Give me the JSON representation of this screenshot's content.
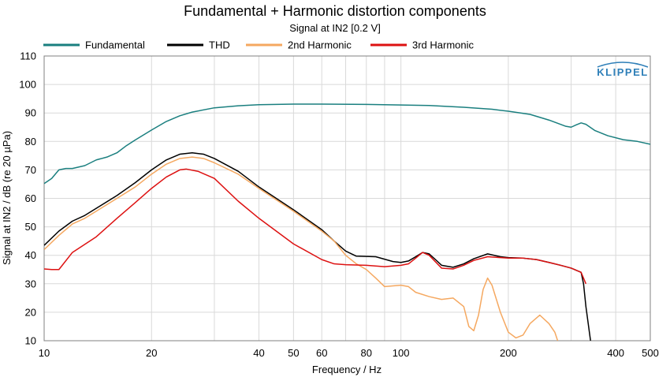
{
  "chart_data": {
    "type": "line",
    "title": "Fundamental + Harmonic distortion components",
    "subtitle": "Signal at IN2 [0.2 V]",
    "xlabel": "Frequency / Hz",
    "ylabel": "Signal at IN2 / dB (re 20 µPa)",
    "xscale": "log",
    "xlim": [
      10,
      500
    ],
    "ylim": [
      10,
      110
    ],
    "grid": true,
    "legend_position": "top",
    "logo_text": "KLIPPEL",
    "x_ticks": [
      10,
      20,
      40,
      50,
      60,
      80,
      100,
      200,
      400,
      500
    ],
    "x_tick_labels": [
      "10",
      "20",
      "40",
      "50",
      "60",
      "80",
      "100",
      "200",
      "400",
      "500"
    ],
    "y_ticks": [
      10,
      20,
      30,
      40,
      50,
      60,
      70,
      80,
      90,
      100,
      110
    ],
    "y_tick_labels": [
      "10",
      "20",
      "30",
      "40",
      "50",
      "60",
      "70",
      "80",
      "90",
      "100",
      "110"
    ],
    "series": [
      {
        "name": "Fundamental",
        "color": "#1a7f7f",
        "points": [
          [
            10,
            65.2
          ],
          [
            10.5,
            67
          ],
          [
            11,
            70
          ],
          [
            11.5,
            70.5
          ],
          [
            12,
            70.5
          ],
          [
            13,
            71.5
          ],
          [
            14,
            73.5
          ],
          [
            15,
            74.5
          ],
          [
            16,
            76
          ],
          [
            17,
            78.5
          ],
          [
            18,
            80.5
          ],
          [
            20,
            84
          ],
          [
            22,
            87
          ],
          [
            24,
            89
          ],
          [
            26,
            90.3
          ],
          [
            30,
            91.8
          ],
          [
            35,
            92.5
          ],
          [
            40,
            92.9
          ],
          [
            50,
            93.1
          ],
          [
            60,
            93.1
          ],
          [
            80,
            93
          ],
          [
            100,
            92.8
          ],
          [
            120,
            92.6
          ],
          [
            150,
            92
          ],
          [
            180,
            91.3
          ],
          [
            200,
            90.6
          ],
          [
            230,
            89.5
          ],
          [
            260,
            87.5
          ],
          [
            290,
            85.3
          ],
          [
            300,
            85
          ],
          [
            310,
            85.8
          ],
          [
            320,
            86.5
          ],
          [
            330,
            86
          ],
          [
            350,
            83.8
          ],
          [
            380,
            82
          ],
          [
            420,
            80.6
          ],
          [
            460,
            80
          ],
          [
            500,
            79
          ]
        ]
      },
      {
        "name": "THD",
        "color": "#000000",
        "points": [
          [
            10,
            43.5
          ],
          [
            11,
            48.5
          ],
          [
            12,
            52
          ],
          [
            13,
            54
          ],
          [
            14,
            56.5
          ],
          [
            16,
            61
          ],
          [
            18,
            65.5
          ],
          [
            20,
            70
          ],
          [
            22,
            73.5
          ],
          [
            24,
            75.5
          ],
          [
            26,
            76
          ],
          [
            28,
            75.5
          ],
          [
            30,
            74
          ],
          [
            35,
            69.5
          ],
          [
            40,
            64
          ],
          [
            50,
            56
          ],
          [
            60,
            49
          ],
          [
            65,
            45
          ],
          [
            70,
            41.5
          ],
          [
            75,
            39.7
          ],
          [
            85,
            39.5
          ],
          [
            95,
            37.8
          ],
          [
            100,
            37.5
          ],
          [
            105,
            38
          ],
          [
            110,
            39.5
          ],
          [
            115,
            41
          ],
          [
            120,
            40.5
          ],
          [
            125,
            38.5
          ],
          [
            130,
            36.5
          ],
          [
            140,
            35.8
          ],
          [
            150,
            37
          ],
          [
            160,
            38.8
          ],
          [
            175,
            40.5
          ],
          [
            190,
            39.5
          ],
          [
            200,
            39.2
          ],
          [
            220,
            39
          ],
          [
            240,
            38.5
          ],
          [
            260,
            37.5
          ],
          [
            280,
            36.5
          ],
          [
            300,
            35.5
          ],
          [
            320,
            34
          ],
          [
            325,
            30
          ],
          [
            330,
            22
          ],
          [
            340,
            10
          ]
        ]
      },
      {
        "name": "2nd Harmonic",
        "color": "#f5a860",
        "points": [
          [
            10,
            42
          ],
          [
            11,
            47
          ],
          [
            12,
            51
          ],
          [
            13,
            53
          ],
          [
            14,
            55.5
          ],
          [
            16,
            60
          ],
          [
            18,
            64
          ],
          [
            20,
            68.5
          ],
          [
            22,
            72
          ],
          [
            24,
            74
          ],
          [
            26,
            74.5
          ],
          [
            28,
            74
          ],
          [
            30,
            72.5
          ],
          [
            35,
            68.5
          ],
          [
            40,
            63.5
          ],
          [
            50,
            55.5
          ],
          [
            60,
            48.5
          ],
          [
            65,
            45
          ],
          [
            70,
            40
          ],
          [
            75,
            37
          ],
          [
            80,
            35
          ],
          [
            85,
            32
          ],
          [
            90,
            29
          ],
          [
            100,
            29.5
          ],
          [
            105,
            29
          ],
          [
            110,
            27
          ],
          [
            120,
            25.5
          ],
          [
            130,
            24.5
          ],
          [
            140,
            25
          ],
          [
            150,
            22
          ],
          [
            155,
            15
          ],
          [
            160,
            13.5
          ],
          [
            165,
            19
          ],
          [
            170,
            28
          ],
          [
            175,
            32
          ],
          [
            180,
            29.5
          ],
          [
            190,
            20
          ],
          [
            200,
            13
          ],
          [
            210,
            11
          ],
          [
            220,
            12
          ],
          [
            230,
            16
          ],
          [
            245,
            19
          ],
          [
            260,
            16
          ],
          [
            270,
            13
          ],
          [
            275,
            10
          ]
        ]
      },
      {
        "name": "3rd Harmonic",
        "color": "#dd1111",
        "points": [
          [
            10,
            35.2
          ],
          [
            10.5,
            35
          ],
          [
            11,
            35
          ],
          [
            12,
            41
          ],
          [
            14,
            46.5
          ],
          [
            16,
            53
          ],
          [
            18,
            58.5
          ],
          [
            20,
            63.5
          ],
          [
            22,
            67.5
          ],
          [
            24,
            70
          ],
          [
            25,
            70.3
          ],
          [
            27,
            69.5
          ],
          [
            30,
            67
          ],
          [
            35,
            59
          ],
          [
            40,
            53
          ],
          [
            50,
            44
          ],
          [
            60,
            38.5
          ],
          [
            65,
            37
          ],
          [
            70,
            36.7
          ],
          [
            80,
            36.5
          ],
          [
            90,
            36
          ],
          [
            100,
            36.5
          ],
          [
            105,
            37
          ],
          [
            110,
            39
          ],
          [
            115,
            41
          ],
          [
            120,
            40
          ],
          [
            130,
            35.5
          ],
          [
            140,
            35.2
          ],
          [
            150,
            36.5
          ],
          [
            160,
            38.2
          ],
          [
            175,
            39.5
          ],
          [
            190,
            39.2
          ],
          [
            200,
            39
          ],
          [
            220,
            39
          ],
          [
            240,
            38.5
          ],
          [
            260,
            37.5
          ],
          [
            280,
            36.5
          ],
          [
            300,
            35.5
          ],
          [
            320,
            34
          ],
          [
            330,
            30
          ]
        ]
      }
    ]
  }
}
